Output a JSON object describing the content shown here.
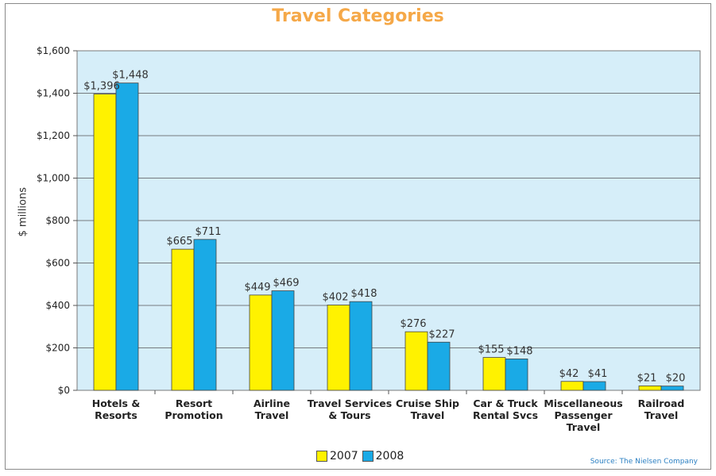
{
  "chart_data": {
    "type": "bar",
    "title": "Travel Categories",
    "ylabel": "$ millions",
    "ylim": [
      0,
      1600
    ],
    "yticks": [
      "$0",
      "$200",
      "$400",
      "$600",
      "$800",
      "$1,000",
      "$1,200",
      "$1,400",
      "$1,600"
    ],
    "yticks_values": [
      0,
      200,
      400,
      600,
      800,
      1000,
      1200,
      1400,
      1600
    ],
    "categories": [
      [
        "Hotels &",
        "Resorts"
      ],
      [
        "Resort",
        "Promotion"
      ],
      [
        "Airline",
        "Travel"
      ],
      [
        "Travel Services",
        "& Tours"
      ],
      [
        "Cruise Ship",
        "Travel"
      ],
      [
        "Car & Truck",
        "Rental Svcs"
      ],
      [
        "Miscellaneous",
        "Passenger",
        "Travel"
      ],
      [
        "Railroad",
        "Travel"
      ]
    ],
    "series": [
      {
        "name": "2007",
        "color": "#fff200",
        "values": [
          1396,
          665,
          449,
          402,
          276,
          155,
          42,
          21
        ],
        "labels": [
          "$1,396",
          "$665",
          "$449",
          "$402",
          "$276",
          "$155",
          "$42",
          "$21"
        ]
      },
      {
        "name": "2008",
        "color": "#1aaae6",
        "values": [
          1448,
          711,
          469,
          418,
          227,
          148,
          41,
          20
        ],
        "labels": [
          "$1,448",
          "$711",
          "$469",
          "$418",
          "$227",
          "$148",
          "$41",
          "$20"
        ]
      }
    ],
    "grid": true,
    "plot_background": "#d6eef9",
    "legend_position": "bottom",
    "source": "Source: The Nielsen Company"
  }
}
